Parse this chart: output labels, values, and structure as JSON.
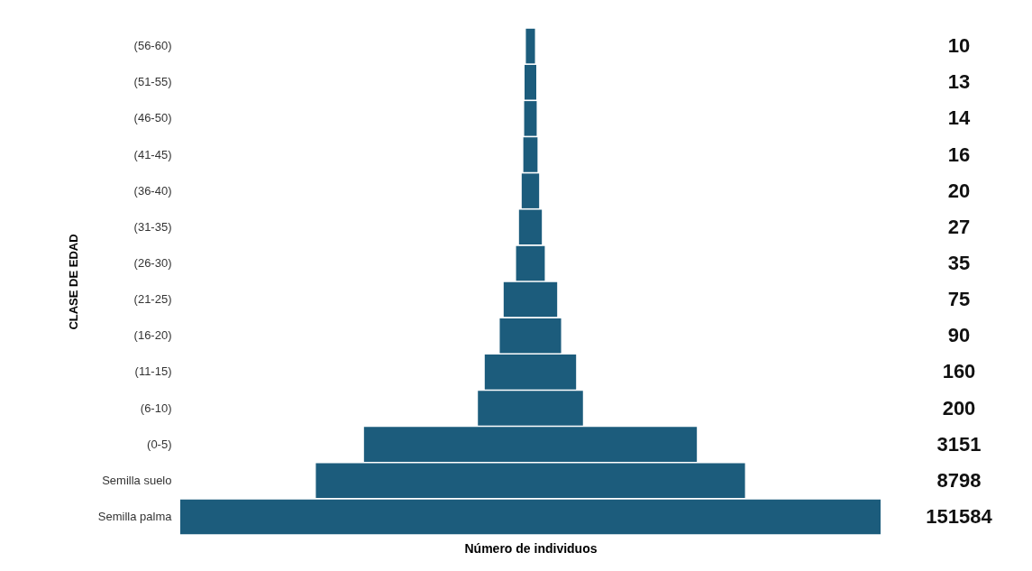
{
  "chart_data": {
    "type": "other",
    "ylabel": "CLASE DE EDAD",
    "xlabel": "Número de individuos",
    "categories": [
      "(56-60)",
      "(51-55)",
      "(46-50)",
      "(41-45)",
      "(36-40)",
      "(31-35)",
      "(26-30)",
      "(21-25)",
      "(16-20)",
      "(11-15)",
      "(6-10)",
      "(0-5)",
      "Semilla suelo",
      "Semilla palma"
    ],
    "values": [
      10,
      13,
      14,
      16,
      20,
      27,
      35,
      75,
      90,
      160,
      200,
      3151,
      8798,
      151584
    ],
    "color": "#1c5c7c",
    "data_labels": true
  }
}
